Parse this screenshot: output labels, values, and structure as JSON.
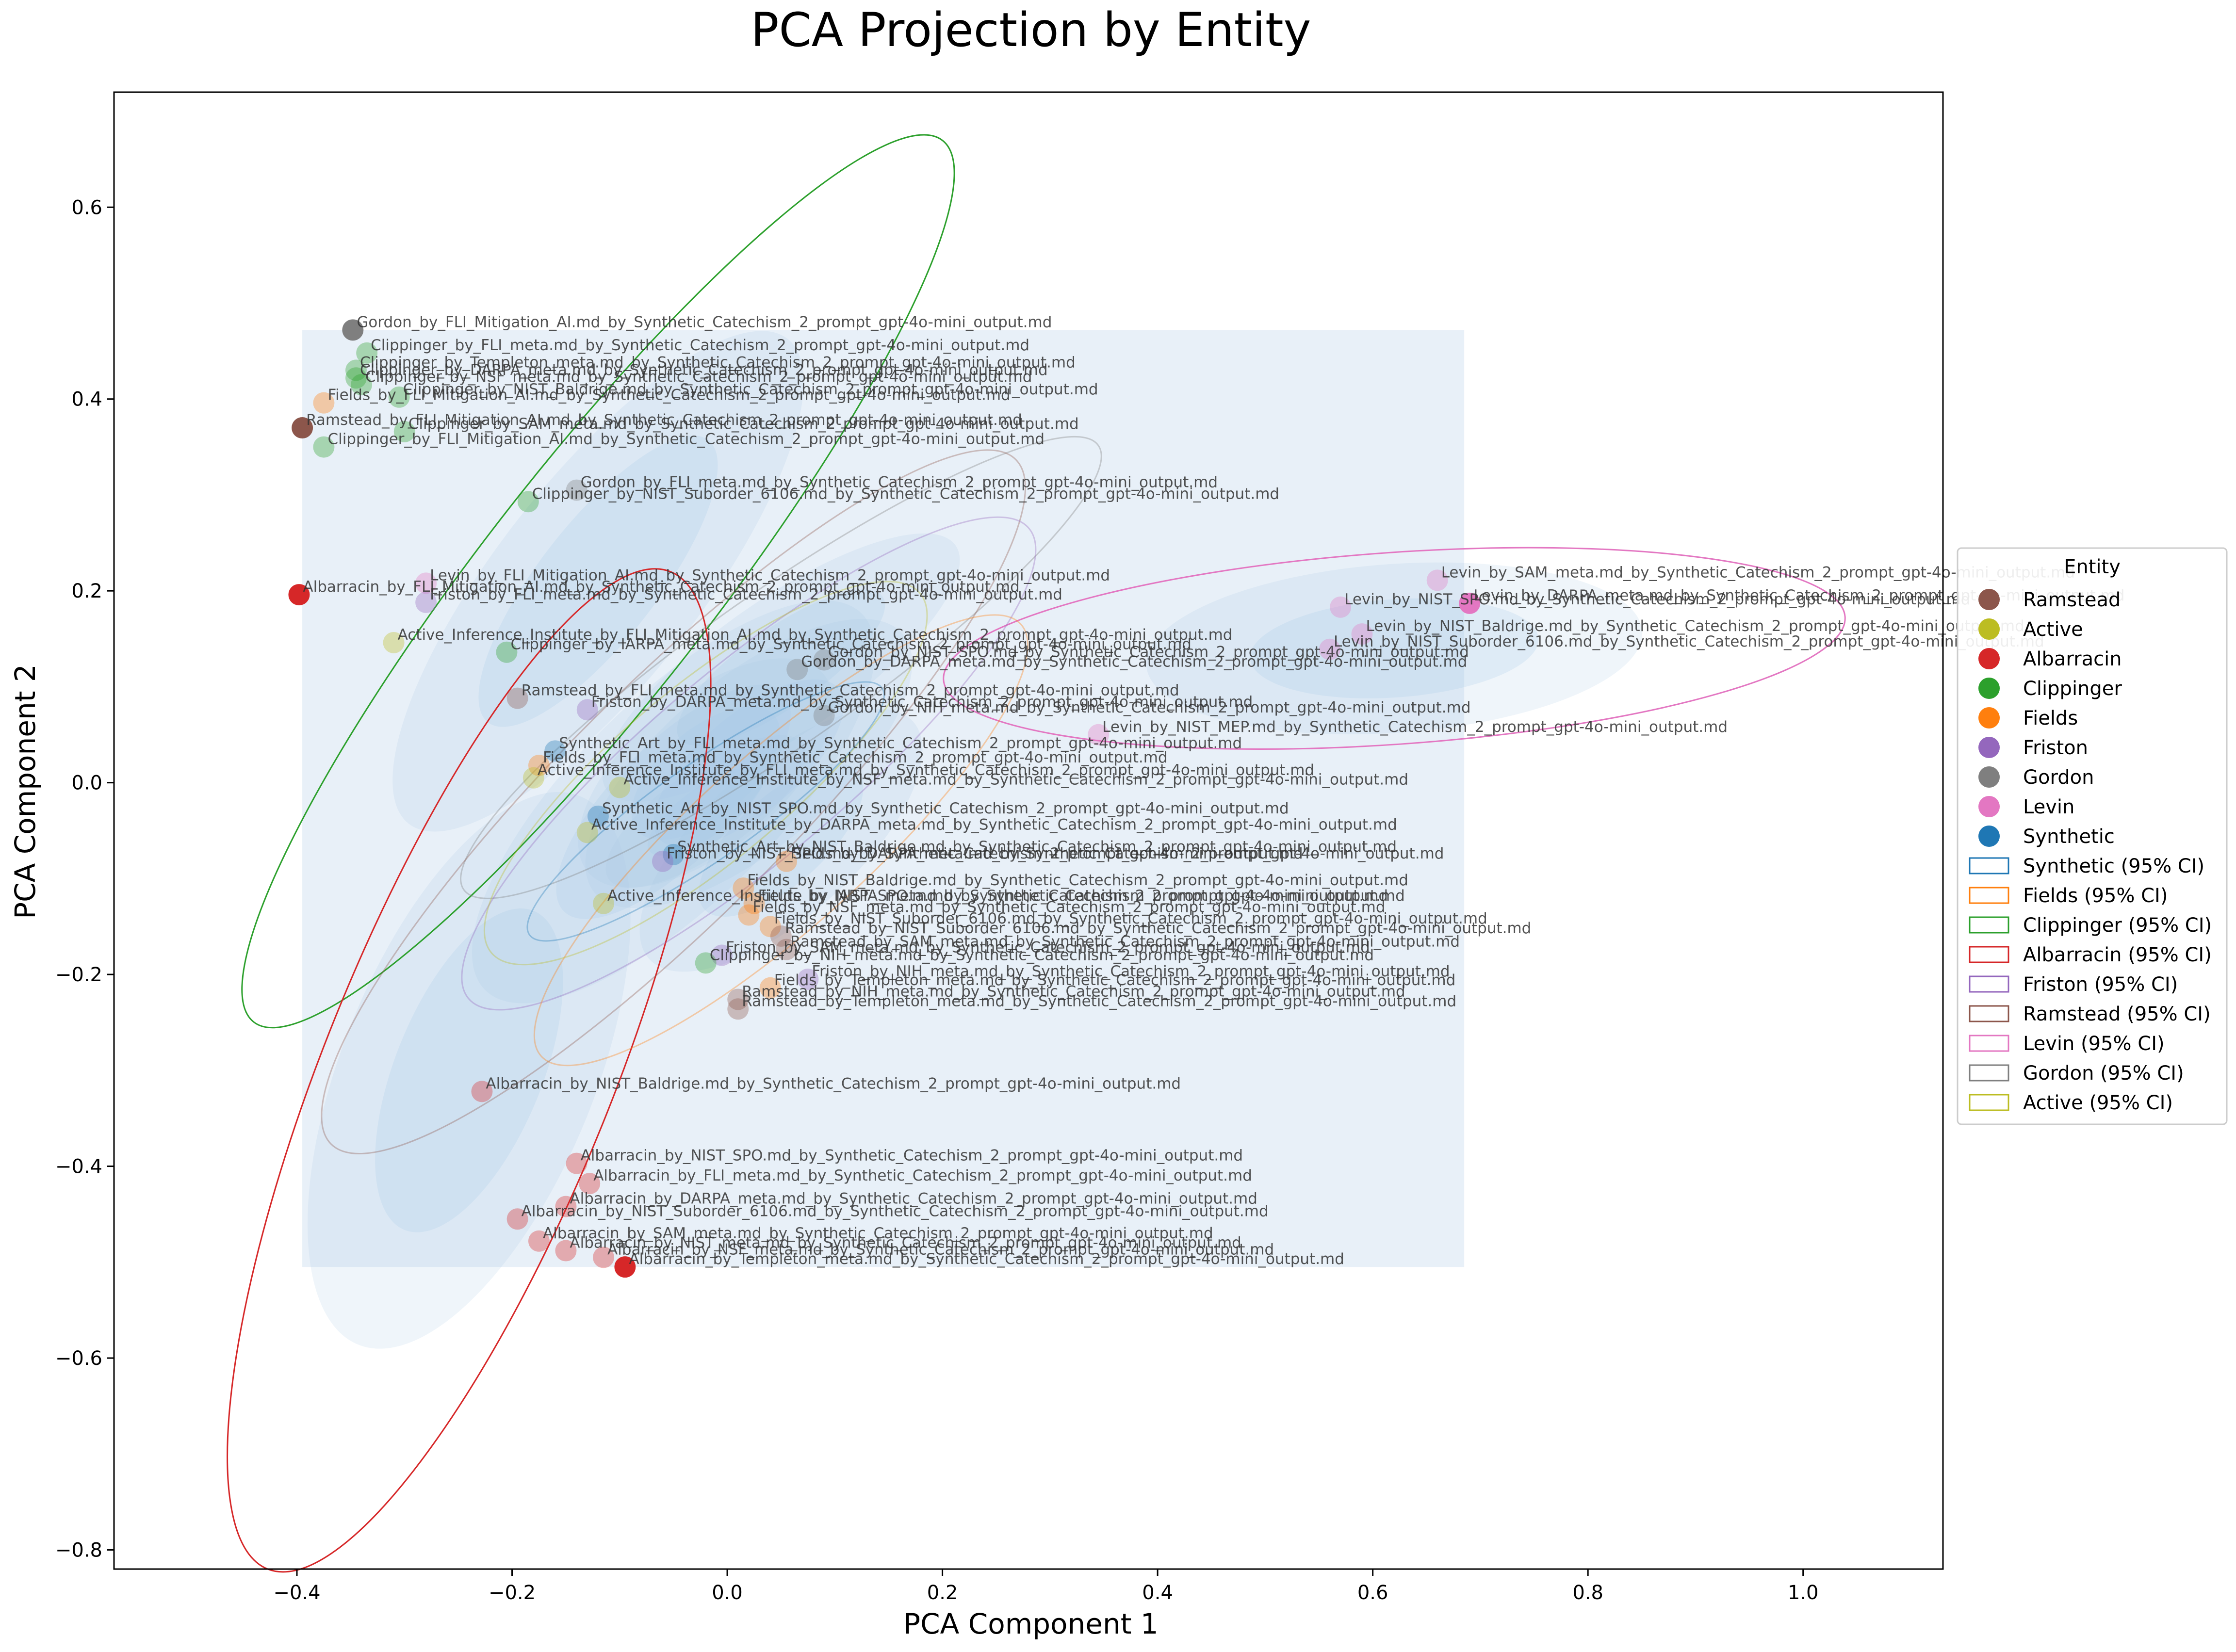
{
  "chart_data": {
    "type": "scatter",
    "title": "PCA Projection by Entity",
    "xlabel": "PCA Component 1",
    "ylabel": "PCA Component 2",
    "xlim": [
      -0.57,
      1.13
    ],
    "ylim": [
      -0.82,
      0.72
    ],
    "xticks": [
      -0.4,
      -0.2,
      0.0,
      0.2,
      0.4,
      0.6,
      0.8,
      1.0
    ],
    "xtick_labels": [
      "−0.4",
      "−0.2",
      "0.0",
      "0.2",
      "0.4",
      "0.6",
      "0.8",
      "1.0"
    ],
    "yticks": [
      -0.8,
      -0.6,
      -0.4,
      -0.2,
      0.0,
      0.2,
      0.4,
      0.6
    ],
    "ytick_labels": [
      "−0.8",
      "−0.6",
      "−0.4",
      "−0.2",
      "0.0",
      "0.2",
      "0.4",
      "0.6"
    ],
    "background_region": {
      "x": [
        -0.395,
        0.685
      ],
      "y": [
        -0.505,
        0.472
      ],
      "color": "#dce8f5"
    },
    "legend": {
      "title": "Entity",
      "position": "right",
      "entries": [
        {
          "label": "Ramstead",
          "kind": "marker",
          "color": "#8c564b"
        },
        {
          "label": "Active",
          "kind": "marker",
          "color": "#bcbd22"
        },
        {
          "label": "Albarracin",
          "kind": "marker",
          "color": "#d62728"
        },
        {
          "label": "Clippinger",
          "kind": "marker",
          "color": "#2ca02c"
        },
        {
          "label": "Fields",
          "kind": "marker",
          "color": "#ff7f0e"
        },
        {
          "label": "Friston",
          "kind": "marker",
          "color": "#9467bd"
        },
        {
          "label": "Gordon",
          "kind": "marker",
          "color": "#7f7f7f"
        },
        {
          "label": "Levin",
          "kind": "marker",
          "color": "#e377c2"
        },
        {
          "label": "Synthetic",
          "kind": "marker",
          "color": "#1f77b4"
        },
        {
          "label": "Synthetic (95% CI)",
          "kind": "box",
          "color": "#1f77b4"
        },
        {
          "label": "Fields (95% CI)",
          "kind": "box",
          "color": "#ff7f0e"
        },
        {
          "label": "Clippinger (95% CI)",
          "kind": "box",
          "color": "#2ca02c"
        },
        {
          "label": "Albarracin (95% CI)",
          "kind": "box",
          "color": "#d62728"
        },
        {
          "label": "Friston (95% CI)",
          "kind": "box",
          "color": "#9467bd"
        },
        {
          "label": "Ramstead (95% CI)",
          "kind": "box",
          "color": "#8c564b"
        },
        {
          "label": "Levin (95% CI)",
          "kind": "box",
          "color": "#e377c2"
        },
        {
          "label": "Gordon (95% CI)",
          "kind": "box",
          "color": "#7f7f7f"
        },
        {
          "label": "Active (95% CI)",
          "kind": "box",
          "color": "#bcbd22"
        }
      ]
    },
    "ellipses": [
      {
        "entity": "Clippinger",
        "color": "#2ca02c",
        "cx": -0.12,
        "cy": 0.21,
        "rx": 0.52,
        "ry": 0.12,
        "angle_deg": -52
      },
      {
        "entity": "Albarracin",
        "color": "#d62728",
        "cx": -0.24,
        "cy": -0.3,
        "rx": 0.5,
        "ry": 0.15,
        "angle_deg": -68
      },
      {
        "entity": "Levin",
        "color": "#e377c2",
        "cx": 0.62,
        "cy": 0.14,
        "rx": 0.42,
        "ry": 0.1,
        "angle_deg": -4
      },
      {
        "entity": "Gordon",
        "color": "#7f7f7f",
        "cx": 0.05,
        "cy": 0.12,
        "rx": 0.36,
        "ry": 0.08,
        "angle_deg": -35
      },
      {
        "entity": "Ramstead",
        "color": "#8c564b",
        "cx": -0.05,
        "cy": -0.02,
        "rx": 0.45,
        "ry": 0.12,
        "angle_deg": -45
      },
      {
        "entity": "Friston",
        "color": "#9467bd",
        "cx": 0.02,
        "cy": 0.02,
        "rx": 0.34,
        "ry": 0.1,
        "angle_deg": -40
      },
      {
        "entity": "Fields",
        "color": "#ff7f0e",
        "cx": 0.05,
        "cy": -0.06,
        "rx": 0.3,
        "ry": 0.09,
        "angle_deg": -42
      },
      {
        "entity": "Active",
        "color": "#bcbd22",
        "cx": -0.02,
        "cy": 0.01,
        "rx": 0.26,
        "ry": 0.09,
        "angle_deg": -40
      },
      {
        "entity": "Synthetic",
        "color": "#1f77b4",
        "cx": -0.02,
        "cy": -0.03,
        "rx": 0.2,
        "ry": 0.05,
        "angle_deg": -35
      }
    ],
    "points": [
      {
        "entity": "Gordon",
        "x": -0.348,
        "y": 0.472,
        "label": "Gordon_by_FLI_Mitigation_AI.md_by_Synthetic_Catechism_2_prompt_gpt-4o-mini_output.md"
      },
      {
        "entity": "Clippinger",
        "x": -0.335,
        "y": 0.448,
        "label": "Clippinger_by_FLI_meta.md_by_Synthetic_Catechism_2_prompt_gpt-4o-mini_output.md"
      },
      {
        "entity": "Clippinger",
        "x": -0.345,
        "y": 0.43,
        "label": "Clippinger_by_Templeton_meta.md_by_Synthetic_Catechism_2_prompt_gpt-4o-mini_output.md"
      },
      {
        "entity": "Clippinger",
        "x": -0.345,
        "y": 0.422,
        "label": "Clippinger_by_DARPA_meta.md_by_Synthetic_Catechism_2_prompt_gpt-4o-mini_output.md"
      },
      {
        "entity": "Clippinger",
        "x": -0.34,
        "y": 0.415,
        "label": "Clippinger_by_NSF_meta.md_by_Synthetic_Catechism_2_prompt_gpt-4o-mini_output.md"
      },
      {
        "entity": "Clippinger",
        "x": -0.305,
        "y": 0.402,
        "label": "Clippinger_by_NIST_Baldrige.md_by_Synthetic_Catechism_2_prompt_gpt-4o-mini_output.md"
      },
      {
        "entity": "Fields",
        "x": -0.375,
        "y": 0.396,
        "label": "Fields_by_FLI_Mitigation_AI.md_by_Synthetic_Catechism_2_prompt_gpt-4o-mini_output.md"
      },
      {
        "entity": "Ramstead",
        "x": -0.395,
        "y": 0.37,
        "label": "Ramstead_by_FLI_Mitigation_AI.md_by_Synthetic_Catechism_2_prompt_gpt-4o-mini_output.md"
      },
      {
        "entity": "Clippinger",
        "x": -0.3,
        "y": 0.366,
        "label": "Clippinger_by_SAM_meta.md_by_Synthetic_Catechism_2_prompt_gpt-4o-mini_output.md"
      },
      {
        "entity": "Clippinger",
        "x": -0.375,
        "y": 0.35,
        "label": "Clippinger_by_FLI_Mitigation_AI.md_by_Synthetic_Catechism_2_prompt_gpt-4o-mini_output.md"
      },
      {
        "entity": "Gordon",
        "x": -0.14,
        "y": 0.305,
        "label": "Gordon_by_FLI_meta.md_by_Synthetic_Catechism_2_prompt_gpt-4o-mini_output.md"
      },
      {
        "entity": "Clippinger",
        "x": -0.185,
        "y": 0.293,
        "label": "Clippinger_by_NIST_Suborder_6106.md_by_Synthetic_Catechism_2_prompt_gpt-4o-mini_output.md"
      },
      {
        "entity": "Levin",
        "x": -0.28,
        "y": 0.208,
        "label": "Levin_by_FLI_Mitigation_AI.md_by_Synthetic_Catechism_2_prompt_gpt-4o-mini_output.md"
      },
      {
        "entity": "Albarracin",
        "x": -0.398,
        "y": 0.196,
        "label": "Albarracin_by_FLI_Mitigation_AI.md_by_Synthetic_Catechism_2_prompt_gpt-4o-mini_output.md"
      },
      {
        "entity": "Friston",
        "x": -0.28,
        "y": 0.188,
        "label": "Friston_by_FLI_meta.md_by_Synthetic_Catechism_2_prompt_gpt-4o-mini_output.md"
      },
      {
        "entity": "Active",
        "x": -0.31,
        "y": 0.146,
        "label": "Active_Inference_Institute_by_FLI_Mitigation_AI.md_by_Synthetic_Catechism_2_prompt_gpt-4o-mini_output.md"
      },
      {
        "entity": "Clippinger",
        "x": -0.205,
        "y": 0.136,
        "label": "Clippinger_by_IARPA_meta.md_by_Synthetic_Catechism_2_prompt_gpt-4o-mini_output.md"
      },
      {
        "entity": "Gordon",
        "x": 0.065,
        "y": 0.118,
        "label": "Gordon_by_DARPA_meta.md_by_Synthetic_Catechism_2_prompt_gpt-4o-mini_output.md"
      },
      {
        "entity": "Gordon",
        "x": 0.09,
        "y": 0.128,
        "label": "Gordon_by_NIST_SPO.md_by_Synthetic_Catechism_2_prompt_gpt-4o-mini_output.md"
      },
      {
        "entity": "Ramstead",
        "x": -0.195,
        "y": 0.088,
        "label": "Ramstead_by_FLI_meta.md_by_Synthetic_Catechism_2_prompt_gpt-4o-mini_output.md"
      },
      {
        "entity": "Friston",
        "x": -0.13,
        "y": 0.076,
        "label": "Friston_by_DARPA_meta.md_by_Synthetic_Catechism_2_prompt_gpt-4o-mini_output.md"
      },
      {
        "entity": "Gordon",
        "x": 0.09,
        "y": 0.07,
        "label": "Gordon_by_NIH_meta.md_by_Synthetic_Catechism_2_prompt_gpt-4o-mini_output.md"
      },
      {
        "entity": "Levin",
        "x": 0.66,
        "y": 0.211,
        "label": "Levin_by_SAM_meta.md_by_Synthetic_Catechism_2_prompt_gpt-4o-mini_output.md"
      },
      {
        "entity": "Levin",
        "x": 0.57,
        "y": 0.183,
        "label": "Levin_by_NIST_SPO.md_by_Synthetic_Catechism_2_prompt_gpt-4o-mini_output.md"
      },
      {
        "entity": "Levin",
        "x": 0.59,
        "y": 0.155,
        "label": "Levin_by_NIST_Baldrige.md_by_Synthetic_Catechism_2_prompt_gpt-4o-mini_output.md"
      },
      {
        "entity": "Levin",
        "x": 0.56,
        "y": 0.139,
        "label": "Levin_by_NIST_Suborder_6106.md_by_Synthetic_Catechism_2_prompt_gpt-4o-mini_output.md"
      },
      {
        "entity": "Levin",
        "x": 0.69,
        "y": 0.187,
        "label": "Levin_by_DARPA_meta.md_by_Synthetic_Catechism_2_prompt_gpt-4o-mini_output.md"
      },
      {
        "entity": "Levin",
        "x": 0.345,
        "y": 0.05,
        "label": "Levin_by_NIST_MEP.md_by_Synthetic_Catechism_2_prompt_gpt-4o-mini_output.md"
      },
      {
        "entity": "Synthetic",
        "x": -0.16,
        "y": 0.033,
        "label": "Synthetic_Art_by_FLI_meta.md_by_Synthetic_Catechism_2_prompt_gpt-4o-mini_output.md"
      },
      {
        "entity": "Fields",
        "x": -0.175,
        "y": 0.018,
        "label": "Fields_by_FLI_meta.md_by_Synthetic_Catechism_2_prompt_gpt-4o-mini_output.md"
      },
      {
        "entity": "Active",
        "x": -0.18,
        "y": 0.005,
        "label": "Active_Inference_Institute_by_FLI_meta.md_by_Synthetic_Catechism_2_prompt_gpt-4o-mini_output.md"
      },
      {
        "entity": "Active",
        "x": -0.1,
        "y": -0.005,
        "label": "Active_Inference_Institute_by_NSF_meta.md_by_Synthetic_Catechism_2_prompt_gpt-4o-mini_output.md"
      },
      {
        "entity": "Synthetic",
        "x": -0.12,
        "y": -0.035,
        "label": "Synthetic_Art_by_NIST_SPO.md_by_Synthetic_Catechism_2_prompt_gpt-4o-mini_output.md"
      },
      {
        "entity": "Active",
        "x": -0.13,
        "y": -0.052,
        "label": "Active_Inference_Institute_by_DARPA_meta.md_by_Synthetic_Catechism_2_prompt_gpt-4o-mini_output.md"
      },
      {
        "entity": "Synthetic",
        "x": -0.05,
        "y": -0.075,
        "label": "Synthetic_Art_by_NIST_Baldrige.md_by_Synthetic_Catechism_2_prompt_gpt-4o-mini_output.md"
      },
      {
        "entity": "Friston",
        "x": -0.06,
        "y": -0.082,
        "label": "Friston_by_NIST_SPO.md_by_Synthetic_Catechism_2_prompt_gpt-4o-mini_output.md"
      },
      {
        "entity": "Fields",
        "x": 0.055,
        "y": -0.082,
        "label": "Fields_by_DARPA_meta.md_by_Synthetic_Catechism_2_prompt_gpt-4o-mini_output.md"
      },
      {
        "entity": "Fields",
        "x": 0.015,
        "y": -0.11,
        "label": "Fields_by_NIST_Baldrige.md_by_Synthetic_Catechism_2_prompt_gpt-4o-mini_output.md"
      },
      {
        "entity": "Active",
        "x": -0.115,
        "y": -0.126,
        "label": "Active_Inference_Institute_by_NIST_SPO.md_by_Synthetic_Catechism_2_prompt_gpt-4o-mini_output.md"
      },
      {
        "entity": "Fields",
        "x": 0.025,
        "y": -0.126,
        "label": "Fields_by_IARPA_meta.md_by_Synthetic_Catechism_2_prompt_gpt-4o-mini_output.md"
      },
      {
        "entity": "Fields",
        "x": 0.02,
        "y": -0.138,
        "label": "Fields_by_NSF_meta.md_by_Synthetic_Catechism_2_prompt_gpt-4o-mini_output.md"
      },
      {
        "entity": "Fields",
        "x": 0.04,
        "y": -0.15,
        "label": "Fields_by_NIST_Suborder_6106.md_by_Synthetic_Catechism_2_prompt_gpt-4o-mini_output.md"
      },
      {
        "entity": "Ramstead",
        "x": 0.05,
        "y": -0.16,
        "label": "Ramstead_by_NIST_Suborder_6106.md_by_Synthetic_Catechism_2_prompt_gpt-4o-mini_output.md"
      },
      {
        "entity": "Ramstead",
        "x": 0.055,
        "y": -0.174,
        "label": "Ramstead_by_SAM_meta.md_by_Synthetic_Catechism_2_prompt_gpt-4o-mini_output.md"
      },
      {
        "entity": "Friston",
        "x": -0.005,
        "y": -0.18,
        "label": "Friston_by_SAM_meta.md_by_Synthetic_Catechism_2_prompt_gpt-4o-mini_output.md"
      },
      {
        "entity": "Clippinger",
        "x": -0.02,
        "y": -0.188,
        "label": "Clippinger_by_NIH_meta.md_by_Synthetic_Catechism_2_prompt_gpt-4o-mini_output.md"
      },
      {
        "entity": "Friston",
        "x": 0.075,
        "y": -0.205,
        "label": "Friston_by_NIH_meta.md_by_Synthetic_Catechism_2_prompt_gpt-4o-mini_output.md"
      },
      {
        "entity": "Fields",
        "x": 0.04,
        "y": -0.214,
        "label": "Fields_by_Templeton_meta.md_by_Synthetic_Catechism_2_prompt_gpt-4o-mini_output.md"
      },
      {
        "entity": "Ramstead",
        "x": 0.01,
        "y": -0.226,
        "label": "Ramstead_by_NIH_meta.md_by_Synthetic_Catechism_2_prompt_gpt-4o-mini_output.md"
      },
      {
        "entity": "Ramstead",
        "x": 0.01,
        "y": -0.236,
        "label": "Ramstead_by_Templeton_meta.md_by_Synthetic_Catechism_2_prompt_gpt-4o-mini_output.md"
      },
      {
        "entity": "Albarracin",
        "x": -0.228,
        "y": -0.322,
        "label": "Albarracin_by_NIST_Baldrige.md_by_Synthetic_Catechism_2_prompt_gpt-4o-mini_output.md"
      },
      {
        "entity": "Albarracin",
        "x": -0.14,
        "y": -0.397,
        "label": "Albarracin_by_NIST_SPO.md_by_Synthetic_Catechism_2_prompt_gpt-4o-mini_output.md"
      },
      {
        "entity": "Albarracin",
        "x": -0.128,
        "y": -0.418,
        "label": "Albarracin_by_FLI_meta.md_by_Synthetic_Catechism_2_prompt_gpt-4o-mini_output.md"
      },
      {
        "entity": "Albarracin",
        "x": -0.15,
        "y": -0.442,
        "label": "Albarracin_by_DARPA_meta.md_by_Synthetic_Catechism_2_prompt_gpt-4o-mini_output.md"
      },
      {
        "entity": "Albarracin",
        "x": -0.195,
        "y": -0.455,
        "label": "Albarracin_by_NIST_Suborder_6106.md_by_Synthetic_Catechism_2_prompt_gpt-4o-mini_output.md"
      },
      {
        "entity": "Albarracin",
        "x": -0.175,
        "y": -0.478,
        "label": "Albarracin_by_SAM_meta.md_by_Synthetic_Catechism_2_prompt_gpt-4o-mini_output.md"
      },
      {
        "entity": "Albarracin",
        "x": -0.15,
        "y": -0.488,
        "label": "Albarracin_by_NIST_meta.md_by_Synthetic_Catechism_2_prompt_gpt-4o-mini_output.md"
      },
      {
        "entity": "Albarracin",
        "x": -0.115,
        "y": -0.495,
        "label": "Albarracin_by_NSF_meta.md_by_Synthetic_Catechism_2_prompt_gpt-4o-mini_output.md"
      },
      {
        "entity": "Albarracin",
        "x": -0.095,
        "y": -0.505,
        "label": "Albarracin_by_Templeton_meta.md_by_Synthetic_Catechism_2_prompt_gpt-4o-mini_output.md"
      }
    ]
  }
}
